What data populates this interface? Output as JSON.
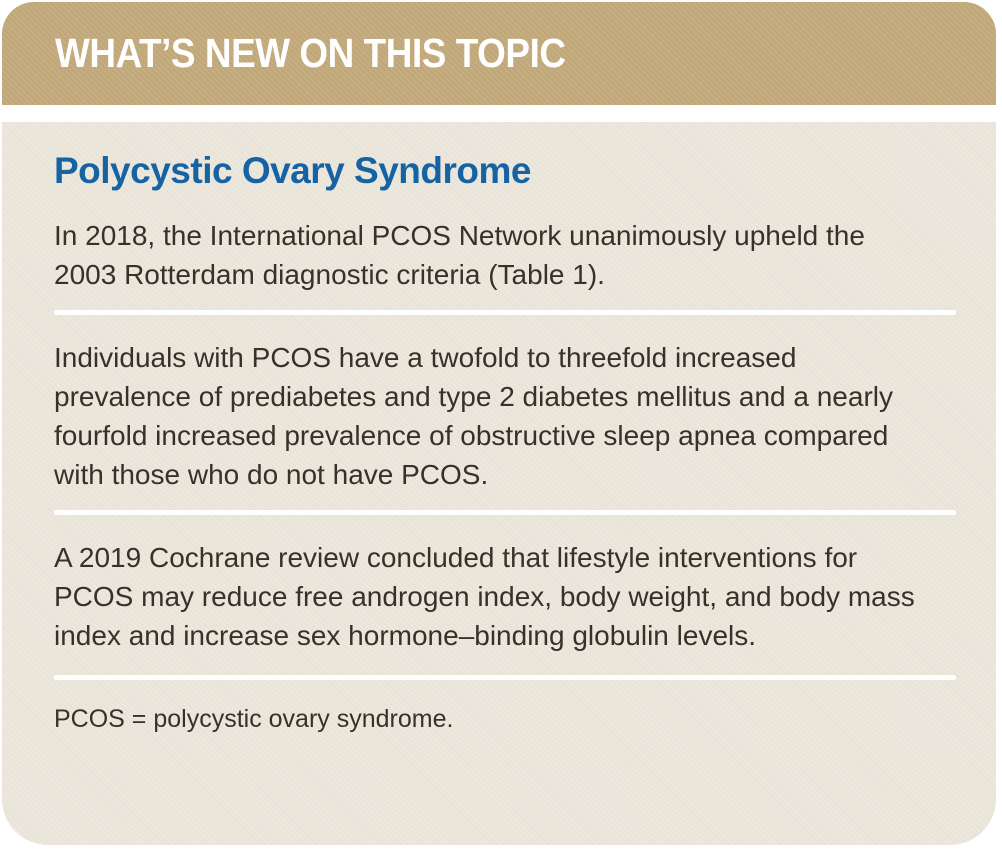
{
  "card": {
    "header": {
      "title": "WHAT’S NEW ON THIS TOPIC"
    },
    "body": {
      "title": "Polycystic Ovary Syndrome",
      "paragraphs": [
        "In 2018, the International PCOS Network unanimously upheld the 2003 Rotterdam diagnostic criteria (Table 1).",
        "Individuals with PCOS have a twofold to threefold increased prevalence of prediabetes and type 2 diabetes mellitus and a nearly fourfold increased prevalence of obstructive sleep apnea compared with those who do not have PCOS.",
        "A 2019 Cochrane review concluded that lifestyle interventions for PCOS may reduce free androgen index, body weight, and body mass index and increase sex hormone–binding globulin levels."
      ],
      "footnote": "PCOS = polycystic ovary syndrome."
    },
    "colors": {
      "header_background": "#c3aa7c",
      "body_background": "#ece7db",
      "heading_blue": "#1563a3",
      "body_text": "#353229",
      "divider": "#ffffff",
      "header_text": "#ffffff"
    }
  }
}
